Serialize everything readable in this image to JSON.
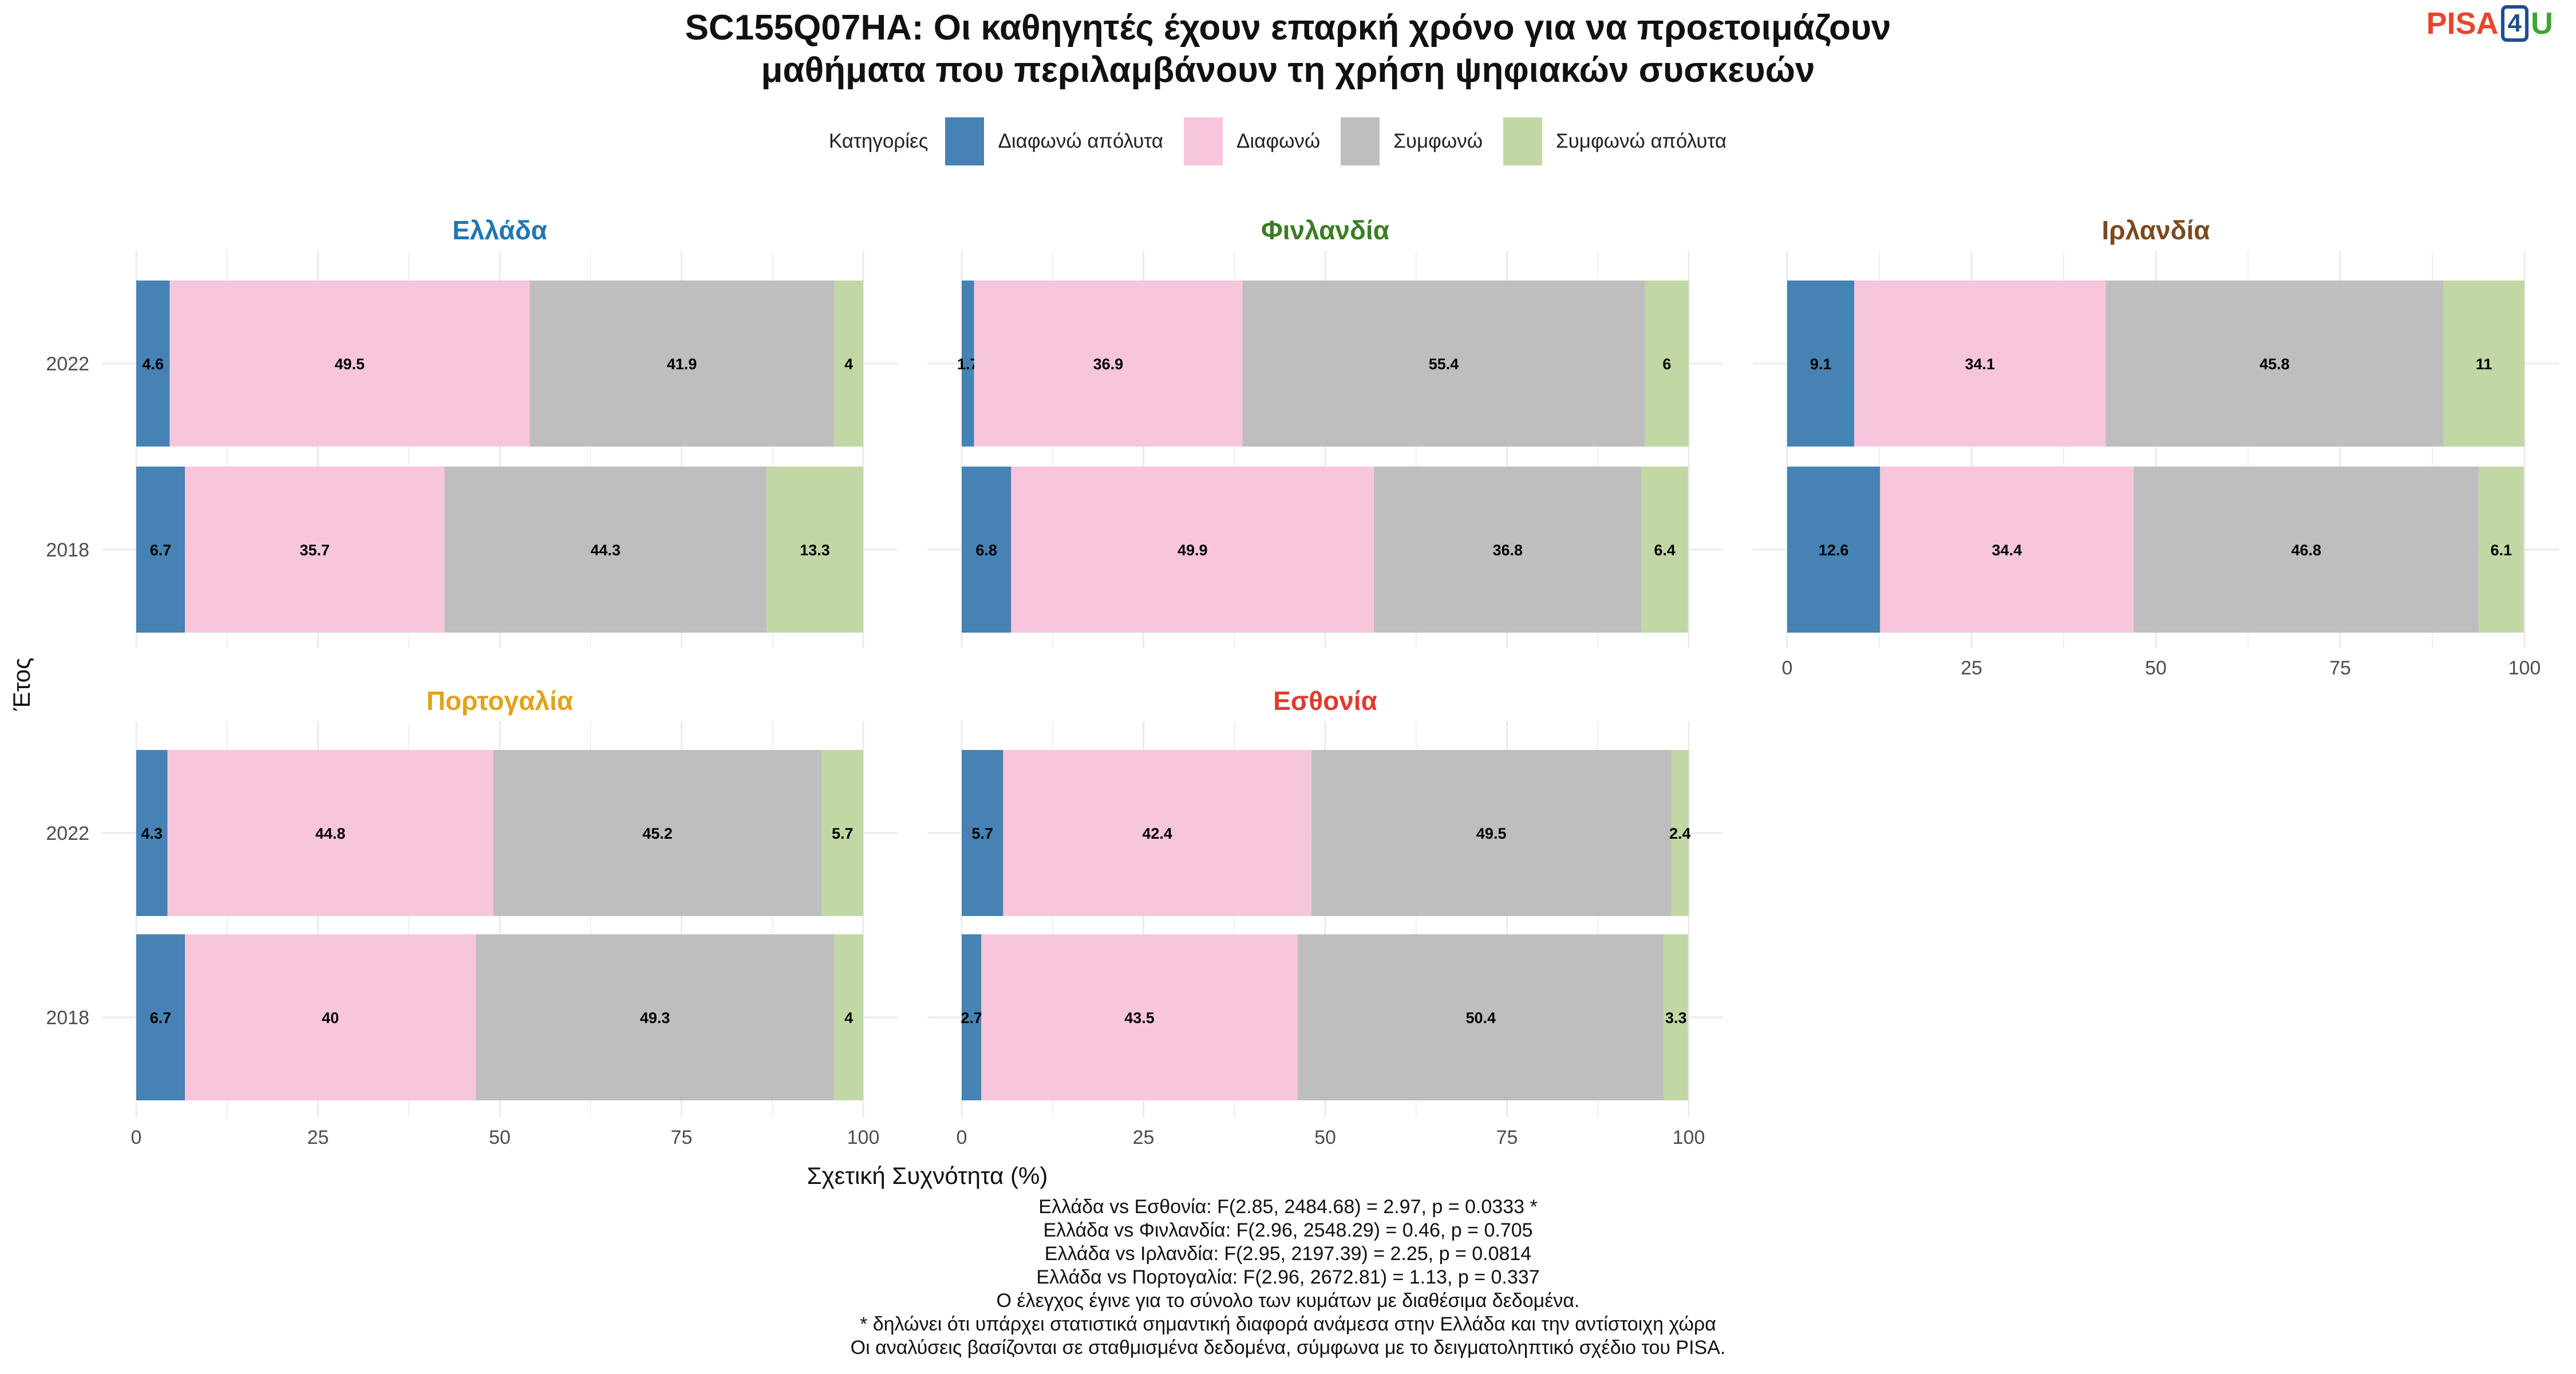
{
  "title_line1": "SC155Q07HA: Οι καθηγητές έχουν επαρκή χρόνο για να προετοιμάζουν",
  "title_line2": "μαθήματα που περιλαμβάνουν τη χρήση ψηφιακών συσκευών",
  "logo": {
    "pisa": "PISA",
    "four": "4",
    "u": "U"
  },
  "legend_title": "Κατηγορίες",
  "colors": {
    "grid": "#ebebeb",
    "axis_text": "#4d4d4d"
  },
  "chart_data": {
    "type": "bar",
    "orientation": "horizontal",
    "stacked": true,
    "xlabel": "Σχετική Συχνότητα (%)",
    "ylabel": "Έτος",
    "xlim": [
      0,
      100
    ],
    "x_ticks": [
      0,
      25,
      50,
      75,
      100
    ],
    "grid": true,
    "legend_position": "top",
    "categories": [
      "2022",
      "2018"
    ],
    "series": [
      {
        "name": "Διαφωνώ απόλυτα",
        "color": "#4682b4"
      },
      {
        "name": "Διαφωνώ",
        "color": "#f7c6dc"
      },
      {
        "name": "Συμφωνώ",
        "color": "#bebebe"
      },
      {
        "name": "Συμφωνώ απόλυτα",
        "color": "#c1d8a4"
      }
    ],
    "panels": [
      {
        "title": "Ελλάδα",
        "title_color": "#1f77b4",
        "values": {
          "2022": [
            4.6,
            49.5,
            41.9,
            4
          ],
          "2018": [
            6.7,
            35.7,
            44.3,
            13.3
          ]
        }
      },
      {
        "title": "Φινλανδία",
        "title_color": "#3a7d22",
        "values": {
          "2022": [
            1.7,
            36.9,
            55.4,
            6
          ],
          "2018": [
            6.8,
            49.9,
            36.8,
            6.4
          ]
        }
      },
      {
        "title": "Ιρλανδία",
        "title_color": "#7b4a1e",
        "values": {
          "2022": [
            9.1,
            34.1,
            45.8,
            11
          ],
          "2018": [
            12.6,
            34.4,
            46.8,
            6.1
          ]
        }
      },
      {
        "title": "Πορτογαλία",
        "title_color": "#e0a31a",
        "values": {
          "2022": [
            4.3,
            44.8,
            45.2,
            5.7
          ],
          "2018": [
            6.7,
            40,
            49.3,
            4
          ]
        }
      },
      {
        "title": "Εσθονία",
        "title_color": "#e03a2f",
        "values": {
          "2022": [
            5.7,
            42.4,
            49.5,
            2.4
          ],
          "2018": [
            2.7,
            43.5,
            50.4,
            3.3
          ]
        }
      }
    ]
  },
  "notes": [
    "Ελλάδα vs Εσθονία: F(2.85, 2484.68) = 2.97, p = 0.0333 *",
    "Ελλάδα vs Φινλανδία: F(2.96, 2548.29) = 0.46, p = 0.705",
    "Ελλάδα vs Ιρλανδία: F(2.95, 2197.39) = 2.25, p = 0.0814",
    "Ελλάδα vs Πορτογαλία: F(2.96, 2672.81) = 1.13, p = 0.337",
    "Ο έλεγχος έγινε για το σύνολο των κυμάτων με διαθέσιμα δεδομένα.",
    "* δηλώνει ότι υπάρχει στατιστικά σημαντική διαφορά ανάμεσα στην Ελλάδα και την αντίστοιχη χώρα",
    "Οι αναλύσεις βασίζονται σε σταθμισμένα δεδομένα, σύμφωνα με το δειγματοληπτικό σχέδιο του PISA."
  ]
}
